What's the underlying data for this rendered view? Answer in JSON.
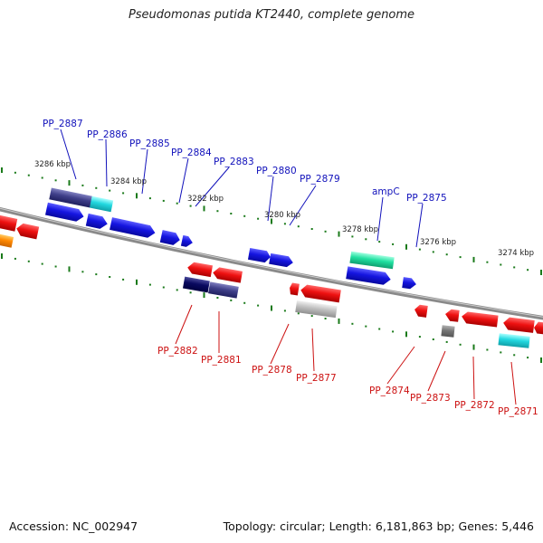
{
  "header": {
    "title": "Pseudomonas putida KT2440, complete genome"
  },
  "footer": {
    "accession": "Accession: NC_002947",
    "summary": "Topology: circular; Length: 6,181,863 bp; Genes: 5,446"
  },
  "ticks": [
    "3286 kbp",
    "3284 kbp",
    "3282 kbp",
    "3280 kbp",
    "3278 kbp",
    "3276 kbp",
    "3274 kbp"
  ],
  "top_labels": [
    "PP_2887",
    "PP_2886",
    "PP_2885",
    "PP_2884",
    "PP_2883",
    "PP_2880",
    "PP_2879",
    "ampC",
    "PP_2875"
  ],
  "bottom_labels": [
    "PP_2882",
    "PP_2881",
    "PP_2878",
    "PP_2877",
    "PP_2874",
    "PP_2873",
    "PP_2872",
    "PP_2871"
  ],
  "colors": {
    "forward": "#1515e0",
    "reverse": "#e01010",
    "forward_label": "#1111bb",
    "reverse_label": "#cc1111",
    "backbone": "#8a8a8a",
    "tick": "#1a7a1a",
    "navy": "#2a2a80",
    "cyan": "#22d0d8",
    "green": "#20e0a0",
    "grey": "#bbbbbb",
    "orange": "#ff8800"
  }
}
